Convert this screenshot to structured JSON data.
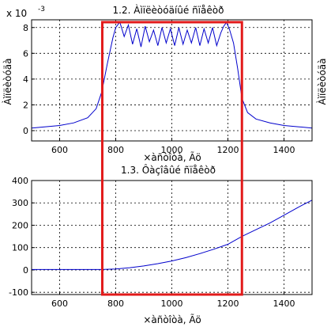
{
  "chart_data": [
    {
      "type": "line",
      "title": "1.2. Àìïëèòóäíûé ñïåêòð",
      "xlabel": "×àñòîòà, Ãö",
      "ylabel": "Àìïëèòóäà",
      "ylabel_right": "Àìïëèòóäà",
      "exponent_label": "x 10",
      "exponent_power": "-3",
      "scale": 0.001,
      "xlim": [
        500,
        1500
      ],
      "ylim": [
        -0.8,
        8.6
      ],
      "xticks": [
        600,
        800,
        1000,
        1200,
        1400
      ],
      "yticks": [
        0,
        2,
        4,
        6,
        8
      ],
      "grid": true,
      "series_color": "#0000cc",
      "highlight": {
        "x": [
          752,
          1250
        ],
        "color": "#e21a1a"
      },
      "series": [
        {
          "x": [
            500,
            550,
            600,
            650,
            700,
            730,
            750,
            770,
            790,
            800,
            810,
            815,
            830,
            845,
            860,
            875,
            890,
            905,
            920,
            935,
            950,
            965,
            980,
            995,
            1010,
            1025,
            1040,
            1055,
            1070,
            1085,
            1100,
            1115,
            1130,
            1145,
            1160,
            1175,
            1185,
            1195,
            1205,
            1220,
            1235,
            1250,
            1270,
            1300,
            1350,
            1400,
            1450,
            1500
          ],
          "y": [
            0.2,
            0.3,
            0.4,
            0.6,
            1.0,
            1.7,
            3.0,
            5.2,
            7.2,
            8.0,
            8.3,
            8.4,
            7.3,
            8.2,
            6.7,
            7.9,
            6.5,
            8.1,
            6.9,
            7.8,
            6.6,
            8.0,
            6.8,
            7.9,
            6.6,
            8.0,
            6.7,
            7.8,
            6.8,
            8.0,
            6.6,
            7.9,
            6.8,
            8.0,
            6.6,
            7.6,
            8.1,
            8.4,
            7.9,
            6.8,
            4.8,
            2.5,
            1.4,
            0.9,
            0.6,
            0.4,
            0.3,
            0.2
          ]
        }
      ]
    },
    {
      "type": "line",
      "title": "1.3. Ôàçîâûé ñïåêòð",
      "xlabel": "×àñòîòà, Ãö",
      "ylabel": "",
      "xlim": [
        500,
        1500
      ],
      "ylim": [
        -110,
        400
      ],
      "xticks": [
        600,
        800,
        1000,
        1200,
        1400
      ],
      "yticks": [
        -100,
        0,
        100,
        200,
        300,
        400
      ],
      "grid": true,
      "series_color": "#0000cc",
      "highlight": {
        "x": [
          752,
          1250
        ],
        "color": "#e21a1a"
      },
      "series": [
        {
          "x": [
            500,
            600,
            700,
            750,
            800,
            850,
            900,
            950,
            1000,
            1050,
            1100,
            1150,
            1200,
            1250,
            1300,
            1350,
            1400,
            1450,
            1500
          ],
          "y": [
            2,
            2,
            2,
            2,
            4,
            10,
            18,
            28,
            40,
            55,
            73,
            93,
            115,
            150,
            180,
            210,
            245,
            280,
            312
          ]
        }
      ]
    }
  ]
}
